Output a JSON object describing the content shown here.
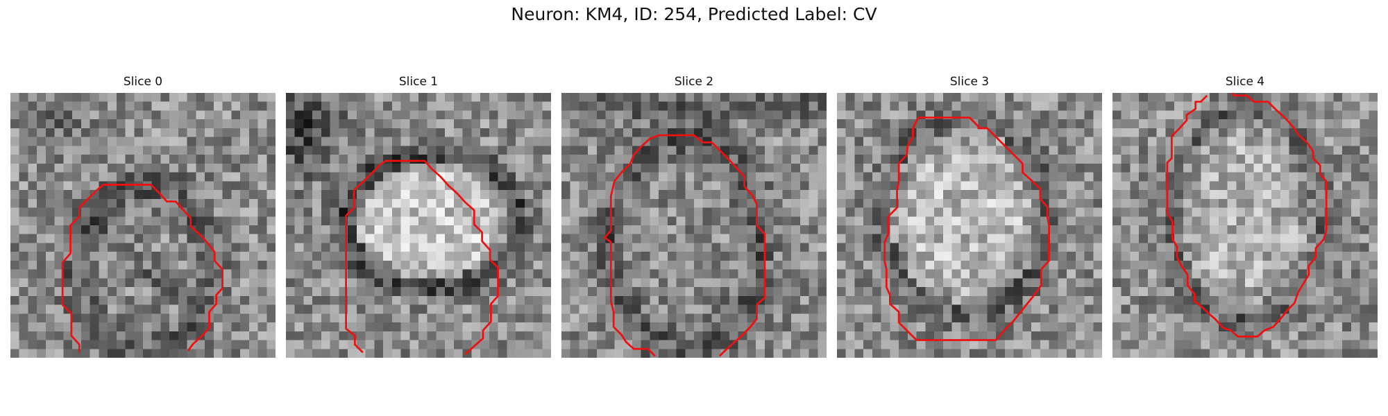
{
  "figure": {
    "title": "Neuron: KM4, ID: 254, Predicted Label: CV"
  },
  "contour_color": "#ee1111",
  "panels": [
    {
      "title": "Slice 0"
    },
    {
      "title": "Slice 1"
    },
    {
      "title": "Slice 2"
    },
    {
      "title": "Slice 3"
    },
    {
      "title": "Slice 4"
    }
  ]
}
